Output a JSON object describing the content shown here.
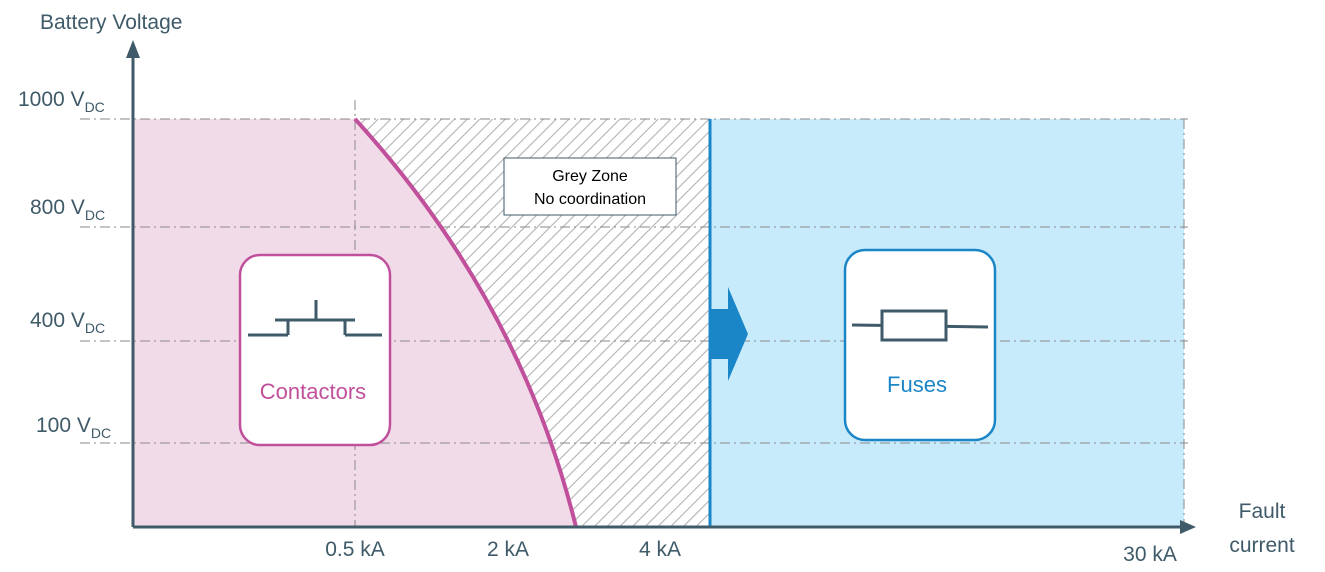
{
  "axes": {
    "y_title": "Battery Voltage",
    "x_title_line1": "Fault",
    "x_title_line2": "current"
  },
  "y_ticks": [
    {
      "value": "1000 V",
      "sub": "DC"
    },
    {
      "value": "800 V",
      "sub": "DC"
    },
    {
      "value": "400 V",
      "sub": "DC"
    },
    {
      "value": "100 V",
      "sub": "DC"
    }
  ],
  "x_ticks": [
    "0.5 kA",
    "2 kA",
    "4 kA",
    "30 kA"
  ],
  "zones": {
    "grey_line1": "Grey Zone",
    "grey_line2": "No coordination",
    "contactors_label": "Contactors",
    "fuses_label": "Fuses"
  },
  "colors": {
    "contactor_zone": "#f2dbe9",
    "contactor_curve": "#c0509b",
    "fuse_zone": "#c8ebfb",
    "fuse_line": "#1a86c7",
    "axis": "#3f5a68",
    "grid": "#8a8a8a"
  }
}
